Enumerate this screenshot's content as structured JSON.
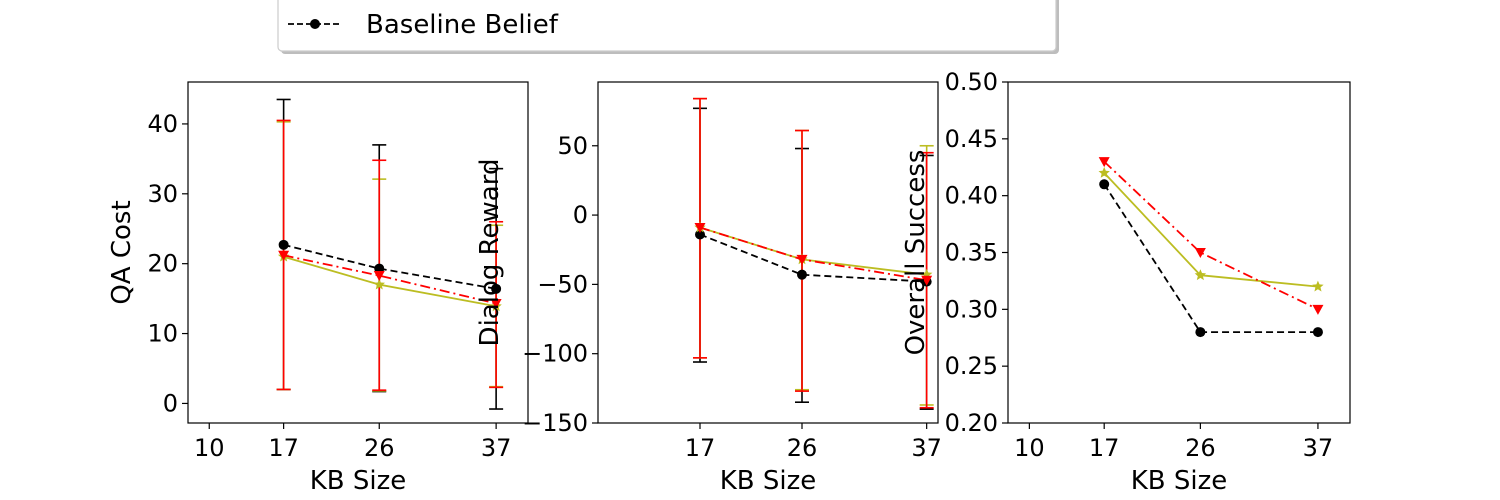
{
  "legend": {
    "entries": [
      {
        "label": "Baseline Belief",
        "color": "#000000",
        "dash": "dashed",
        "marker": "circle"
      }
    ]
  },
  "chart_data": [
    {
      "type": "line",
      "xlabel": "KB Size",
      "ylabel": "QA Cost",
      "xlim": [
        8,
        40
      ],
      "ylim": [
        -2.8,
        46
      ],
      "xticks": [
        10,
        17,
        26,
        37
      ],
      "yticks": [
        0,
        10,
        20,
        30,
        40
      ],
      "x": [
        17,
        26,
        37
      ],
      "series": [
        {
          "color": "#000000",
          "dash": "dashed",
          "marker": "circle",
          "label": "Baseline Belief",
          "values": [
            22.7,
            19.3,
            16.4
          ],
          "err_low": [
            2.0,
            1.7,
            -0.8
          ],
          "err_high": [
            43.5,
            37.0,
            33.6
          ]
        },
        {
          "color": "#bcbd22",
          "dash": "solid",
          "marker": "star",
          "values": [
            21.0,
            17.0,
            13.9
          ],
          "err_low": [
            2.0,
            1.8,
            2.4
          ],
          "err_high": [
            40.3,
            32.1,
            25.5
          ]
        },
        {
          "color": "#ff0000",
          "dash": "dashdot",
          "marker": "triangle-down",
          "values": [
            21.2,
            18.3,
            14.3
          ],
          "err_low": [
            2.0,
            1.9,
            2.3
          ],
          "err_high": [
            40.5,
            34.8,
            26.0
          ]
        }
      ]
    },
    {
      "type": "line",
      "xlabel": "KB Size",
      "ylabel": "Dialog Reward",
      "xlim": [
        8,
        38
      ],
      "ylim": [
        -150,
        96
      ],
      "xticks": [
        17,
        26,
        37
      ],
      "yticks": [
        -150,
        -100,
        -50,
        0,
        50
      ],
      "ytick_labels": [
        "−150",
        "−100",
        "−50",
        "0",
        "50"
      ],
      "x": [
        17,
        26,
        37
      ],
      "series": [
        {
          "color": "#000000",
          "dash": "dashed",
          "marker": "circle",
          "label": "Baseline Belief",
          "values": [
            -14,
            -43,
            -48
          ],
          "err_low": [
            -106,
            -135,
            -140
          ],
          "err_high": [
            77,
            48,
            43
          ]
        },
        {
          "color": "#bcbd22",
          "dash": "solid",
          "marker": "star",
          "values": [
            -9,
            -32,
            -43
          ],
          "err_low": [
            -103,
            -126,
            -137
          ],
          "err_high": [
            84,
            61,
            50
          ]
        },
        {
          "color": "#ff0000",
          "dash": "dashdot",
          "marker": "triangle-down",
          "values": [
            -9,
            -32,
            -47
          ],
          "err_low": [
            -103,
            -127,
            -139
          ],
          "err_high": [
            84,
            61,
            45
          ]
        }
      ]
    },
    {
      "type": "line",
      "xlabel": "KB Size",
      "ylabel": "Overall Success",
      "xlim": [
        8,
        40
      ],
      "ylim": [
        0.2,
        0.5
      ],
      "xticks": [
        10,
        17,
        26,
        37
      ],
      "yticks": [
        0.2,
        0.25,
        0.3,
        0.35,
        0.4,
        0.45,
        0.5
      ],
      "ytick_labels": [
        "0.20",
        "0.25",
        "0.30",
        "0.35",
        "0.40",
        "0.45",
        "0.50"
      ],
      "x": [
        17,
        26,
        37
      ],
      "series": [
        {
          "color": "#000000",
          "dash": "dashed",
          "marker": "circle",
          "label": "Baseline Belief",
          "values": [
            0.41,
            0.28,
            0.28
          ]
        },
        {
          "color": "#bcbd22",
          "dash": "solid",
          "marker": "star",
          "values": [
            0.42,
            0.33,
            0.32
          ]
        },
        {
          "color": "#ff0000",
          "dash": "dashdot",
          "marker": "triangle-down",
          "values": [
            0.43,
            0.35,
            0.3
          ]
        }
      ]
    }
  ]
}
